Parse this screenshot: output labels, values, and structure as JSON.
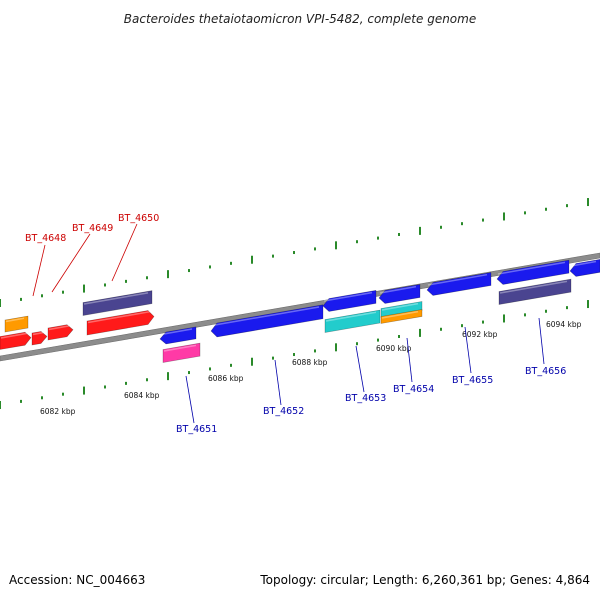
{
  "title": "Bacteroides thetaiotaomicron VPI-5482, complete genome",
  "footer": {
    "accession": "Accession: NC_004663",
    "summary": "Topology: circular; Length: 6,260,361 bp; Genes: 4,864"
  },
  "colors": {
    "backbone": "#8c8c8c",
    "tick": "#2a8a2a",
    "label_red": "#cc0000",
    "label_blue": "#0000aa",
    "leader_red": "#cc0000",
    "leader_blue": "#0000aa"
  },
  "scale_ticks": [
    "6082 kbp",
    "6084 kbp",
    "6086 kbp",
    "6088 kbp",
    "6090 kbp",
    "6092 kbp",
    "6094 kbp"
  ],
  "gene_labels": [
    {
      "id": "BT_4648",
      "strand": "forward"
    },
    {
      "id": "BT_4649",
      "strand": "forward"
    },
    {
      "id": "BT_4650",
      "strand": "forward"
    },
    {
      "id": "BT_4651",
      "strand": "reverse"
    },
    {
      "id": "BT_4652",
      "strand": "reverse"
    },
    {
      "id": "BT_4653",
      "strand": "reverse"
    },
    {
      "id": "BT_4654",
      "strand": "reverse"
    },
    {
      "id": "BT_4655",
      "strand": "reverse"
    },
    {
      "id": "BT_4656",
      "strand": "reverse"
    }
  ],
  "feature_colors": {
    "red": "#ff1a1a",
    "orange": "#ff9a00",
    "blue": "#1a1aee",
    "slate": "#4a4490",
    "cyan": "#22cccc",
    "magenta": "#ff3aa6"
  }
}
